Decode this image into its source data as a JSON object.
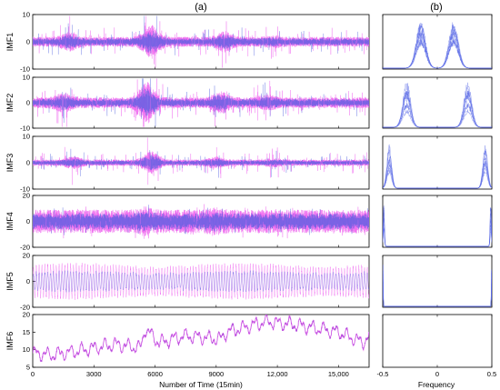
{
  "figure": {
    "panel_a_label": "(a)",
    "panel_b_label": "(b)",
    "xlabel_a": "Number of Time (15min)",
    "xlabel_b": "Frequency"
  },
  "colors": {
    "signal_magenta": "#ee66ee",
    "signal_blue": "#4f5fe0",
    "spectrum_blue": "#5a6ae6",
    "trend_purple": "#9a4fd6"
  },
  "chart_data": [
    {
      "type": "line",
      "panel": "a",
      "ylabel": "IMF1",
      "ylim": [
        -10,
        10
      ],
      "yticks": [
        -10,
        0,
        10
      ],
      "xlim": [
        0,
        16500
      ],
      "x_tick_labels": [
        "0",
        "3000",
        "6000",
        "9000",
        "12,000",
        "15,000"
      ],
      "x_tick_values": [
        0,
        3000,
        6000,
        9000,
        12000,
        15000
      ],
      "bursts": [
        [
          1800,
          2.0
        ],
        [
          5800,
          3.5
        ],
        [
          9400,
          2.2
        ],
        [
          11800,
          1.4
        ]
      ],
      "base_amp": 1.2,
      "noise_amp": 4.0
    },
    {
      "type": "line",
      "panel": "a",
      "ylabel": "IMF2",
      "ylim": [
        -10,
        10
      ],
      "yticks": [
        -10,
        0,
        10
      ],
      "xlim": [
        0,
        16500
      ],
      "bursts": [
        [
          1500,
          2.0
        ],
        [
          5600,
          4.0
        ],
        [
          9200,
          2.2
        ],
        [
          11500,
          1.6
        ]
      ],
      "base_amp": 1.4,
      "noise_amp": 4.6
    },
    {
      "type": "line",
      "panel": "a",
      "ylabel": "IMF3",
      "ylim": [
        -10,
        10
      ],
      "yticks": [
        -10,
        0,
        10
      ],
      "xlim": [
        0,
        16500
      ],
      "bursts": [
        [
          2000,
          2.0
        ],
        [
          5800,
          3.6
        ],
        [
          9000,
          2.0
        ],
        [
          11800,
          1.5
        ]
      ],
      "base_amp": 0.8,
      "noise_amp": 3.2
    },
    {
      "type": "line",
      "panel": "a",
      "ylabel": "IMF4",
      "ylim": [
        -20,
        20
      ],
      "yticks": [
        -20,
        0,
        20
      ],
      "xlim": [
        0,
        16500
      ],
      "bursts": [
        [
          5500,
          1.3
        ],
        [
          9000,
          1.2
        ]
      ],
      "base_amp": 6.0,
      "noise_amp": 5.0
    },
    {
      "type": "line",
      "panel": "a",
      "ylabel": "IMF5",
      "ylim": [
        -20,
        20
      ],
      "yticks": [
        -20,
        0,
        20
      ],
      "xlim": [
        0,
        16500
      ],
      "oscillation": true,
      "base_amp": 13.0,
      "period": 140
    },
    {
      "type": "line",
      "panel": "a",
      "ylabel": "IMF6",
      "ylim": [
        5,
        20
      ],
      "yticks": [
        5,
        10,
        15,
        20
      ],
      "xlim": [
        0,
        16500
      ],
      "trend_points": [
        [
          0,
          9
        ],
        [
          1000,
          8.5
        ],
        [
          2500,
          10
        ],
        [
          4000,
          11.5
        ],
        [
          5300,
          10.5
        ],
        [
          5500,
          16
        ],
        [
          6200,
          12
        ],
        [
          7500,
          14
        ],
        [
          9200,
          13
        ],
        [
          9500,
          15
        ],
        [
          10800,
          17
        ],
        [
          11500,
          18
        ],
        [
          13000,
          17
        ],
        [
          15000,
          15
        ],
        [
          16200,
          12
        ],
        [
          16500,
          14
        ]
      ]
    },
    {
      "type": "line",
      "panel": "b",
      "title": "",
      "xlim": [
        -0.5,
        0.5
      ],
      "x_tick_labels": [
        "-0.5",
        "0",
        "0.5"
      ],
      "x_tick_values": [
        -0.5,
        0,
        0.5
      ],
      "spectra": [
        {
          "peaks": [
            -0.15,
            0.15
          ],
          "width": 0.06
        },
        {
          "peaks": [
            -0.28,
            0.28
          ],
          "width": 0.05
        },
        {
          "peaks": [
            -0.44,
            0.44
          ],
          "width": 0.03
        },
        {
          "peaks": [
            -0.49,
            0.49
          ],
          "width": 0.008
        },
        {
          "peaks": [
            -0.497,
            0.497
          ],
          "width": 0.003
        },
        {
          "peaks": [],
          "width": 0.0
        }
      ]
    }
  ]
}
